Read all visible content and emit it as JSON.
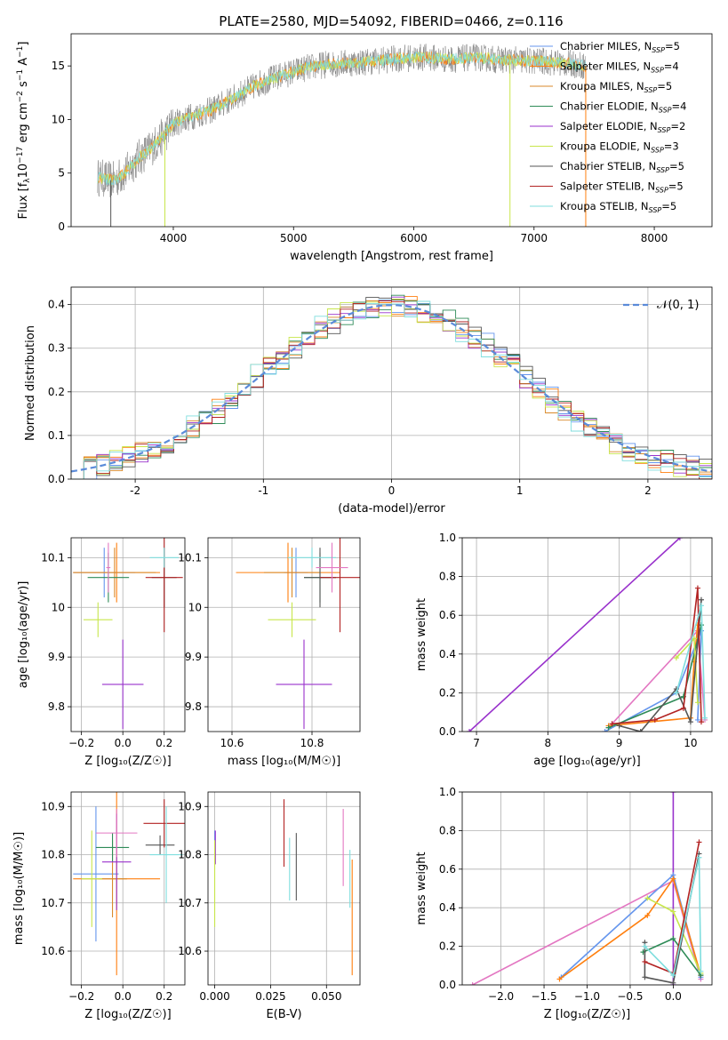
{
  "figure": {
    "title": "PLATE=2580, MJD=54092, FIBERID=0466, z=0.116"
  },
  "colors": {
    "Chabrier MILES": "#6495ed",
    "Salpeter MILES": "#ff7f0e",
    "Kroupa MILES": "#d98a2b",
    "Chabrier ELODIE": "#2e8b57",
    "Salpeter ELODIE": "#9932cc",
    "Kroupa ELODIE": "#c8e64b",
    "Chabrier STELIB": "#555555",
    "Salpeter STELIB": "#b22222",
    "Kroupa STELIB": "#7fdede",
    "pink": "#e377c2",
    "data": "#7f7f7f",
    "normal": "#5b8bd9"
  },
  "chart_data": [
    {
      "id": "spectrum",
      "type": "line",
      "title": "PLATE=2580, MJD=54092, FIBERID=0466, z=0.116",
      "xlabel": "wavelength [Angstrom, rest frame]",
      "ylabel_parts": [
        "Flux [f",
        "λ",
        "10",
        "−17",
        " erg cm",
        "−2",
        " s",
        "−1",
        " A",
        "−1",
        "]"
      ],
      "xlim": [
        3150,
        8480
      ],
      "ylim": [
        0,
        18
      ],
      "xticks": [
        4000,
        5000,
        6000,
        7000,
        8000
      ],
      "yticks": [
        0,
        5,
        10,
        15
      ],
      "grid": false,
      "legend_position": "top-right",
      "continuum": [
        [
          3370,
          4.6
        ],
        [
          3500,
          4.3
        ],
        [
          3600,
          5.0
        ],
        [
          3700,
          6.3
        ],
        [
          3800,
          7.2
        ],
        [
          3900,
          8.3
        ],
        [
          4000,
          9.6
        ],
        [
          4100,
          10.1
        ],
        [
          4300,
          10.8
        ],
        [
          4500,
          12.0
        ],
        [
          4700,
          13.3
        ],
        [
          4900,
          14.1
        ],
        [
          5100,
          14.8
        ],
        [
          5300,
          15.2
        ],
        [
          5500,
          15.3
        ],
        [
          5700,
          15.5
        ],
        [
          5900,
          15.7
        ],
        [
          6100,
          15.8
        ],
        [
          6300,
          15.6
        ],
        [
          6500,
          15.8
        ],
        [
          6700,
          15.6
        ],
        [
          6900,
          15.5
        ],
        [
          7100,
          15.4
        ],
        [
          7300,
          15.2
        ],
        [
          7430,
          15.0
        ]
      ],
      "drops": [
        {
          "wavelength": 3480,
          "series": "Chabrier STELIB"
        },
        {
          "wavelength": 3930,
          "series": "Kroupa ELODIE"
        },
        {
          "wavelength": 6800,
          "series": "Kroupa ELODIE"
        },
        {
          "wavelength": 7430,
          "series": "Salpeter MILES"
        }
      ],
      "series": [
        {
          "name": "Chabrier MILES, N$_{SSP}$=5",
          "label": "Chabrier MILES",
          "nssp": "5",
          "color": "Chabrier MILES"
        },
        {
          "name": "Salpeter MILES, N$_{SSP}$=4",
          "label": "Salpeter MILES",
          "nssp": "4",
          "color": "Salpeter MILES"
        },
        {
          "name": "Kroupa MILES, N$_{SSP}$=5",
          "label": "Kroupa MILES",
          "nssp": "5",
          "color": "Kroupa MILES"
        },
        {
          "name": "Chabrier ELODIE, N$_{SSP}$=4",
          "label": "Chabrier ELODIE",
          "nssp": "4",
          "color": "Chabrier ELODIE"
        },
        {
          "name": "Salpeter ELODIE, N$_{SSP}$=2",
          "label": "Salpeter ELODIE",
          "nssp": "2",
          "color": "Salpeter ELODIE"
        },
        {
          "name": "Kroupa ELODIE, N$_{SSP}$=3",
          "label": "Kroupa ELODIE",
          "nssp": "3",
          "color": "Kroupa ELODIE"
        },
        {
          "name": "Chabrier STELIB, N$_{SSP}$=5",
          "label": "Chabrier STELIB",
          "nssp": "5",
          "color": "Chabrier STELIB"
        },
        {
          "name": "Salpeter STELIB, N$_{SSP}$=5",
          "label": "Salpeter STELIB",
          "nssp": "5",
          "color": "Salpeter STELIB"
        },
        {
          "name": "Kroupa STELIB, N$_{SSP}$=5",
          "label": "Kroupa STELIB",
          "nssp": "5",
          "color": "Kroupa STELIB"
        }
      ]
    },
    {
      "id": "residuals",
      "type": "line",
      "xlabel": "(data-model)/error",
      "ylabel": "Normed distribution",
      "xlim": [
        -2.5,
        2.5
      ],
      "ylim": [
        0,
        0.44
      ],
      "xticks": [
        -2,
        -1,
        0,
        1,
        2
      ],
      "yticks": [
        0.0,
        0.1,
        0.2,
        0.3,
        0.4
      ],
      "grid": true,
      "legend_position": "top-right",
      "legend": "𝒩(0, 1)",
      "bin_width": 0.1,
      "histogram_colors": [
        "Chabrier MILES",
        "Salpeter MILES",
        "Kroupa MILES",
        "Chabrier ELODIE",
        "Salpeter ELODIE",
        "Kroupa ELODIE",
        "Chabrier STELIB",
        "Salpeter STELIB",
        "Kroupa STELIB"
      ]
    },
    {
      "id": "age-vs-Z",
      "type": "scatter",
      "xlabel": "Z [log₁₀(Z/Z☉)]",
      "ylabel": "age  [log₁₀(age/yr)]",
      "xlim": [
        -0.25,
        0.3
      ],
      "ylim": [
        9.75,
        10.14
      ],
      "xticks": [
        -0.2,
        0.0,
        0.2
      ],
      "xticklabels": [
        "−0.2",
        "0.0",
        "0.2"
      ],
      "yticks": [
        9.8,
        9.9,
        10.0,
        10.1
      ],
      "grid": true,
      "points": [
        {
          "color": "Chabrier MILES",
          "x": -0.09,
          "y": 10.07,
          "xerr": 0.15,
          "yerr": 0.05
        },
        {
          "color": "Salpeter MILES",
          "x": -0.03,
          "y": 10.07,
          "xerr": 0.21,
          "yerr": 0.06
        },
        {
          "color": "Kroupa MILES",
          "x": -0.04,
          "y": 10.07,
          "xerr": 0.2,
          "yerr": 0.05
        },
        {
          "color": "Chabrier ELODIE",
          "x": -0.07,
          "y": 10.06,
          "xerr": 0.1,
          "yerr": 0.05
        },
        {
          "color": "Salpeter ELODIE",
          "x": 0.0,
          "y": 9.845,
          "xerr": 0.1,
          "yerr": 0.09
        },
        {
          "color": "Kroupa ELODIE",
          "x": -0.12,
          "y": 9.975,
          "xerr": 0.07,
          "yerr": 0.035
        },
        {
          "color": "Chabrier STELIB",
          "x": 0.2,
          "y": 10.06,
          "xerr": 0.06,
          "yerr": 0.06
        },
        {
          "color": "Salpeter STELIB",
          "x": 0.2,
          "y": 10.06,
          "xerr": 0.09,
          "yerr": 0.11
        },
        {
          "color": "Kroupa STELIB",
          "x": 0.2,
          "y": 10.1,
          "xerr": 0.07,
          "yerr": 0.02
        },
        {
          "color": "pink",
          "x": -0.07,
          "y": 10.08,
          "xerr": 0.01,
          "yerr": 0.05
        }
      ]
    },
    {
      "id": "age-vs-mass",
      "type": "scatter",
      "xlabel": "mass [log₁₀(M/M☉)]",
      "ylabel": "",
      "xlim": [
        10.54,
        10.92
      ],
      "ylim": [
        9.75,
        10.14
      ],
      "xticks": [
        10.6,
        10.8
      ],
      "yticks": [
        9.8,
        9.9,
        10.0,
        10.1
      ],
      "grid": true,
      "points": [
        {
          "color": "Chabrier MILES",
          "x": 10.76,
          "y": 10.07,
          "xerr": 0.03,
          "yerr": 0.05
        },
        {
          "color": "Salpeter MILES",
          "x": 10.74,
          "y": 10.07,
          "xerr": 0.13,
          "yerr": 0.06
        },
        {
          "color": "Kroupa MILES",
          "x": 10.75,
          "y": 10.07,
          "xerr": 0.07,
          "yerr": 0.05
        },
        {
          "color": "Chabrier ELODIE",
          "x": 10.82,
          "y": 10.06,
          "xerr": 0.04,
          "yerr": 0.05
        },
        {
          "color": "Salpeter ELODIE",
          "x": 10.78,
          "y": 9.845,
          "xerr": 0.07,
          "yerr": 0.09
        },
        {
          "color": "Kroupa ELODIE",
          "x": 10.75,
          "y": 9.975,
          "xerr": 0.06,
          "yerr": 0.035
        },
        {
          "color": "Chabrier STELIB",
          "x": 10.82,
          "y": 10.06,
          "xerr": 0.04,
          "yerr": 0.06
        },
        {
          "color": "Salpeter STELIB",
          "x": 10.87,
          "y": 10.06,
          "xerr": 0.05,
          "yerr": 0.11
        },
        {
          "color": "Kroupa STELIB",
          "x": 10.8,
          "y": 10.1,
          "xerr": 0.06,
          "yerr": 0.02
        },
        {
          "color": "pink",
          "x": 10.85,
          "y": 10.08,
          "xerr": 0.04,
          "yerr": 0.05
        }
      ]
    },
    {
      "id": "weight-vs-age",
      "type": "line",
      "xlabel": "age  [log₁₀(age/yr)]",
      "ylabel": "mass weight",
      "xlim": [
        6.8,
        10.3
      ],
      "ylim": [
        0,
        1.0
      ],
      "xticks": [
        7,
        8,
        9,
        10
      ],
      "yticks": [
        0.0,
        0.2,
        0.4,
        0.6,
        0.8,
        1.0
      ],
      "grid": true,
      "series": [
        {
          "color": "Salpeter ELODIE",
          "points": [
            [
              6.9,
              0.0
            ],
            [
              9.85,
              1.0
            ]
          ]
        },
        {
          "color": "pink",
          "points": [
            [
              8.85,
              0.02
            ],
            [
              10.1,
              0.52
            ],
            [
              10.2,
              0.06
            ]
          ]
        },
        {
          "color": "Chabrier MILES",
          "points": [
            [
              8.8,
              0.0
            ],
            [
              9.8,
              0.2
            ],
            [
              10.15,
              0.52
            ],
            [
              10.1,
              0.06
            ]
          ]
        },
        {
          "color": "Salpeter MILES",
          "points": [
            [
              8.85,
              0.03
            ],
            [
              10.0,
              0.07
            ],
            [
              10.05,
              0.36
            ],
            [
              10.1,
              0.55
            ]
          ]
        },
        {
          "color": "Chabrier ELODIE",
          "points": [
            [
              8.85,
              0.02
            ],
            [
              9.9,
              0.18
            ],
            [
              10.15,
              0.55
            ]
          ]
        },
        {
          "color": "Kroupa ELODIE",
          "points": [
            [
              9.8,
              0.38
            ],
            [
              10.05,
              0.48
            ],
            [
              10.1,
              0.15
            ]
          ]
        },
        {
          "color": "Chabrier STELIB",
          "points": [
            [
              9.0,
              0.03
            ],
            [
              9.3,
              0.0
            ],
            [
              9.8,
              0.22
            ],
            [
              10.0,
              0.05
            ],
            [
              10.15,
              0.68
            ]
          ]
        },
        {
          "color": "Salpeter STELIB",
          "points": [
            [
              8.9,
              0.04
            ],
            [
              9.5,
              0.06
            ],
            [
              9.9,
              0.12
            ],
            [
              10.1,
              0.74
            ],
            [
              10.15,
              0.05
            ]
          ]
        },
        {
          "color": "Kroupa STELIB",
          "points": [
            [
              9.8,
              0.2
            ],
            [
              10.15,
              0.65
            ],
            [
              10.2,
              0.07
            ]
          ]
        }
      ]
    },
    {
      "id": "mass-vs-Z",
      "type": "scatter",
      "xlabel": "Z [log₁₀(Z/Z☉)]",
      "ylabel": "mass [log₁₀(M/M☉)]",
      "xlim": [
        -0.25,
        0.3
      ],
      "ylim": [
        10.53,
        10.93
      ],
      "xticks": [
        -0.2,
        0.0,
        0.2
      ],
      "xticklabels": [
        "−0.2",
        "0.0",
        "0.2"
      ],
      "yticks": [
        10.6,
        10.7,
        10.8,
        10.9
      ],
      "grid": true,
      "points": [
        {
          "color": "Chabrier MILES",
          "x": -0.13,
          "y": 10.76,
          "xerr": 0.11,
          "yerr": 0.14
        },
        {
          "color": "Salpeter MILES",
          "x": -0.03,
          "y": 10.75,
          "xerr": 0.21,
          "yerr": 0.2
        },
        {
          "color": "Kroupa MILES",
          "x": -0.05,
          "y": 10.75,
          "xerr": 0.07,
          "yerr": 0.08
        },
        {
          "color": "Chabrier ELODIE",
          "x": -0.05,
          "y": 10.815,
          "xerr": 0.08,
          "yerr": 0.03
        },
        {
          "color": "Salpeter ELODIE",
          "x": -0.03,
          "y": 10.785,
          "xerr": 0.07,
          "yerr": 0.1
        },
        {
          "color": "Kroupa ELODIE",
          "x": -0.15,
          "y": 10.75,
          "xerr": 0.05,
          "yerr": 0.1
        },
        {
          "color": "Chabrier STELIB",
          "x": 0.18,
          "y": 10.82,
          "xerr": 0.07,
          "yerr": 0.02
        },
        {
          "color": "Salpeter STELIB",
          "x": 0.2,
          "y": 10.865,
          "xerr": 0.1,
          "yerr": 0.05
        },
        {
          "color": "Kroupa STELIB",
          "x": 0.21,
          "y": 10.8,
          "xerr": 0.08,
          "yerr": 0.1
        },
        {
          "color": "pink",
          "x": -0.03,
          "y": 10.845,
          "xerr": 0.1,
          "yerr": 0.05
        }
      ]
    },
    {
      "id": "mass-vs-EBV",
      "type": "scatter",
      "xlabel": "E(B-V)",
      "ylabel": "",
      "xlim": [
        -0.003,
        0.065
      ],
      "ylim": [
        10.53,
        10.93
      ],
      "xticks": [
        0.0,
        0.025,
        0.05
      ],
      "xticklabels": [
        "0.000",
        "0.025",
        "0.050"
      ],
      "yticks": [
        10.6,
        10.7,
        10.8,
        10.9
      ],
      "grid": true,
      "points": [
        {
          "color": "Chabrier MILES",
          "x": 0.0,
          "y": 10.82,
          "xerr": 0,
          "yerr": 0.03
        },
        {
          "color": "Salpeter ELODIE",
          "x": 0.0003,
          "y": 10.815,
          "xerr": 0,
          "yerr": 0.035
        },
        {
          "color": "Kroupa ELODIE",
          "x": 0.0,
          "y": 10.74,
          "xerr": 0,
          "yerr": 0.09
        },
        {
          "color": "Salpeter STELIB",
          "x": 0.031,
          "y": 10.845,
          "xerr": 0,
          "yerr": 0.07
        },
        {
          "color": "Kroupa STELIB",
          "x": 0.0335,
          "y": 10.77,
          "xerr": 0,
          "yerr": 0.065
        },
        {
          "color": "Chabrier STELIB",
          "x": 0.0365,
          "y": 10.775,
          "xerr": 0,
          "yerr": 0.07
        },
        {
          "color": "pink",
          "x": 0.0575,
          "y": 10.815,
          "xerr": 0,
          "yerr": 0.08
        },
        {
          "color": "Kroupa STELIB",
          "x": 0.0605,
          "y": 10.75,
          "xerr": 0,
          "yerr": 0.06
        },
        {
          "color": "Salpeter MILES",
          "x": 0.0615,
          "y": 10.67,
          "xerr": 0,
          "yerr": 0.12
        }
      ]
    },
    {
      "id": "weight-vs-Z",
      "type": "line",
      "xlabel": "Z [log₁₀(Z/Z☉)]",
      "ylabel": "mass weight",
      "xlim": [
        -2.45,
        0.45
      ],
      "ylim": [
        0,
        1.0
      ],
      "xticks": [
        -2.0,
        -1.5,
        -1.0,
        -0.5,
        0.0
      ],
      "xticklabels": [
        "−2.0",
        "−1.5",
        "−1.0",
        "−0.5",
        "0.0"
      ],
      "yticks": [
        0.0,
        0.2,
        0.4,
        0.6,
        0.8,
        1.0
      ],
      "grid": true,
      "series": [
        {
          "color": "Salpeter ELODIE",
          "points": [
            [
              0.0,
              0.0
            ],
            [
              0.0,
              1.0
            ]
          ]
        },
        {
          "color": "pink",
          "points": [
            [
              -2.33,
              0.0
            ],
            [
              0.0,
              0.54
            ],
            [
              0.32,
              0.03
            ]
          ]
        },
        {
          "color": "Chabrier MILES",
          "points": [
            [
              -1.3,
              0.04
            ],
            [
              0.0,
              0.57
            ],
            [
              0.32,
              0.04
            ]
          ]
        },
        {
          "color": "Salpeter MILES",
          "points": [
            [
              -1.32,
              0.03
            ],
            [
              -0.3,
              0.36
            ],
            [
              0.0,
              0.55
            ],
            [
              0.32,
              0.05
            ]
          ]
        },
        {
          "color": "Kroupa ELODIE",
          "points": [
            [
              -0.3,
              0.45
            ],
            [
              0.0,
              0.38
            ],
            [
              0.32,
              0.06
            ]
          ]
        },
        {
          "color": "Chabrier ELODIE",
          "points": [
            [
              -0.35,
              0.17
            ],
            [
              0.0,
              0.24
            ],
            [
              0.32,
              0.05
            ]
          ]
        },
        {
          "color": "Chabrier STELIB",
          "points": [
            [
              -0.33,
              0.22
            ],
            [
              -0.33,
              0.04
            ],
            [
              0.0,
              0.01
            ],
            [
              0.3,
              0.68
            ]
          ]
        },
        {
          "color": "Salpeter STELIB",
          "points": [
            [
              -0.33,
              0.12
            ],
            [
              0.0,
              0.06
            ],
            [
              0.3,
              0.74
            ]
          ]
        },
        {
          "color": "Kroupa STELIB",
          "points": [
            [
              -0.33,
              0.2
            ],
            [
              0.0,
              0.05
            ],
            [
              0.3,
              0.66
            ],
            [
              0.32,
              0.07
            ]
          ]
        }
      ]
    }
  ]
}
